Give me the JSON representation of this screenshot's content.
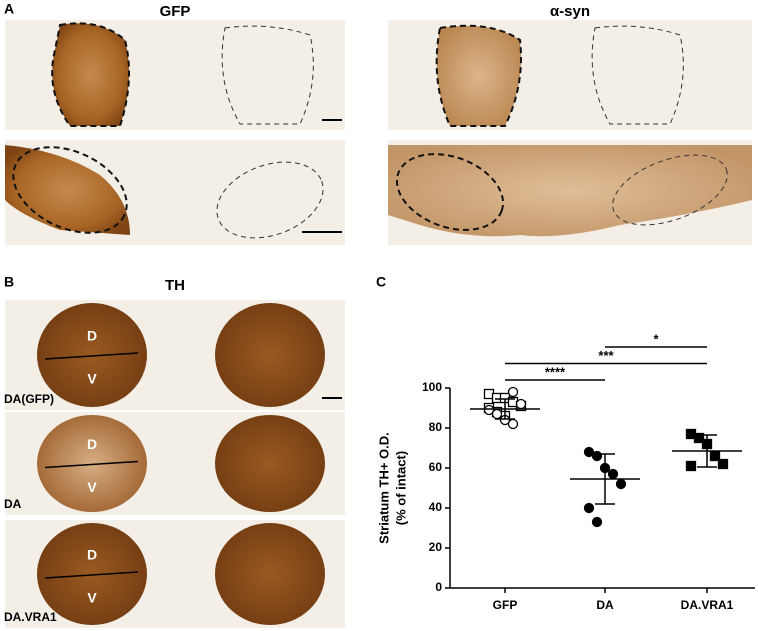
{
  "panels": {
    "A": {
      "letter": "A",
      "titles": [
        "GFP",
        "α-syn"
      ]
    },
    "B": {
      "letter": "B",
      "title": "TH",
      "row_labels": [
        "DA(GFP)",
        "DA",
        "DA.VRA1"
      ],
      "region_labels": [
        "D",
        "V"
      ]
    },
    "C": {
      "letter": "C"
    }
  },
  "chart_data": {
    "type": "strip",
    "y_label_lines": [
      "Striatum TH+ O.D.",
      "(% of  intact)"
    ],
    "categories": [
      "GFP",
      "DA",
      "DA.VRA1"
    ],
    "ylim": [
      0,
      100
    ],
    "yticks": [
      0,
      20,
      40,
      60,
      80,
      100
    ],
    "groups": [
      {
        "series": [
          {
            "marker": "square",
            "filled": false,
            "values": [
              97,
              95,
              95,
              93,
              91,
              90,
              88,
              86
            ]
          },
          {
            "marker": "circle",
            "filled": false,
            "values": [
              98,
              92,
              89,
              87,
              84,
              82
            ]
          }
        ],
        "mean": 89.5,
        "sd": 5
      },
      {
        "series": [
          {
            "marker": "circle",
            "filled": true,
            "values": [
              68,
              66,
              60,
              57,
              52,
              40,
              33
            ]
          }
        ],
        "mean": 54.5,
        "sd": 12.5
      },
      {
        "series": [
          {
            "marker": "square",
            "filled": true,
            "values": [
              77,
              75,
              72,
              66,
              62,
              61
            ]
          }
        ],
        "mean": 68.5,
        "sd": 8
      }
    ],
    "comparisons": [
      {
        "label": "*",
        "between": [
          1,
          2
        ]
      },
      {
        "label": "***",
        "between": [
          0,
          2
        ]
      },
      {
        "label": "****",
        "between": [
          0,
          1
        ]
      }
    ],
    "color": "#000000"
  }
}
